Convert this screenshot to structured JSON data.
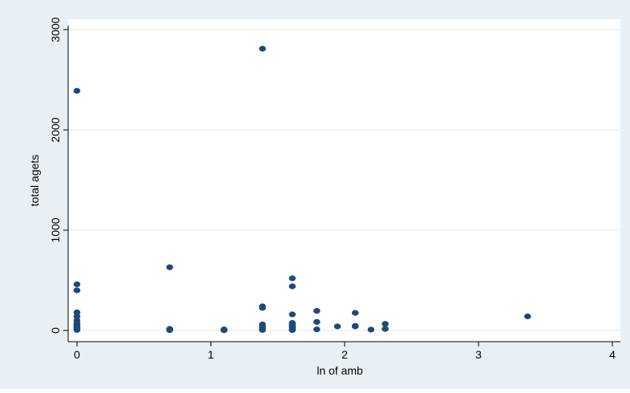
{
  "chart_data": {
    "type": "scatter",
    "title": "",
    "xlabel": "ln of amb",
    "ylabel": "total agets",
    "xlim": [
      0,
      4
    ],
    "ylim": [
      0,
      3000
    ],
    "x_ticks": [
      0,
      1,
      2,
      3,
      4
    ],
    "y_ticks": [
      0,
      1000,
      2000,
      3000
    ],
    "x_tick_labels": [
      "0",
      "1",
      "2",
      "3",
      "4"
    ],
    "y_tick_labels": [
      "0",
      "1000",
      "2000",
      "3000"
    ],
    "grid": true,
    "legend": "none",
    "colors": {
      "outer_background": "#e9f0f5",
      "plot_background": "#ffffff",
      "gridline": "#e4eaef",
      "marker": "#1d4a78",
      "axis": "#000000"
    },
    "series": [
      {
        "points": [
          [
            0,
            2390
          ],
          [
            0,
            460
          ],
          [
            0,
            400
          ],
          [
            0,
            180
          ],
          [
            0,
            140
          ],
          [
            0,
            100
          ],
          [
            0,
            70
          ],
          [
            0,
            50
          ],
          [
            0,
            30
          ],
          [
            0,
            15
          ],
          [
            0,
            5
          ],
          [
            0.693,
            630
          ],
          [
            0.693,
            15
          ],
          [
            0.693,
            8
          ],
          [
            0.693,
            3
          ],
          [
            1.099,
            10
          ],
          [
            1.099,
            5
          ],
          [
            1.099,
            2
          ],
          [
            1.386,
            2810
          ],
          [
            1.386,
            240
          ],
          [
            1.386,
            225
          ],
          [
            1.386,
            60
          ],
          [
            1.386,
            40
          ],
          [
            1.386,
            20
          ],
          [
            1.386,
            5
          ],
          [
            1.609,
            520
          ],
          [
            1.609,
            440
          ],
          [
            1.609,
            160
          ],
          [
            1.609,
            75
          ],
          [
            1.609,
            55
          ],
          [
            1.609,
            40
          ],
          [
            1.609,
            25
          ],
          [
            1.609,
            10
          ],
          [
            1.609,
            3
          ],
          [
            1.792,
            195
          ],
          [
            1.792,
            85
          ],
          [
            1.792,
            10
          ],
          [
            1.946,
            40
          ],
          [
            2.079,
            175
          ],
          [
            2.079,
            45
          ],
          [
            2.079,
            40
          ],
          [
            2.197,
            8
          ],
          [
            2.303,
            65
          ],
          [
            2.303,
            15
          ],
          [
            3.367,
            140
          ]
        ]
      }
    ]
  }
}
